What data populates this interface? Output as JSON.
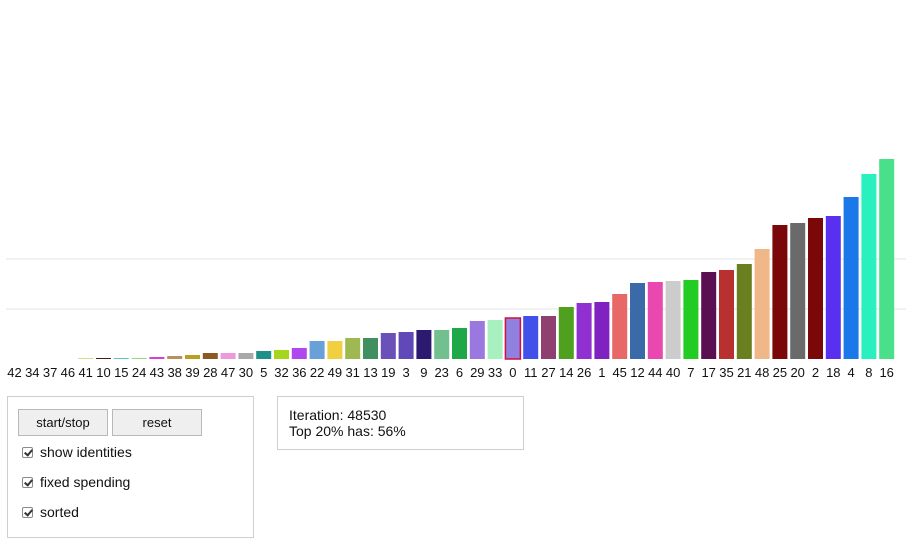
{
  "chart_data": {
    "type": "bar",
    "categories": [
      "42",
      "34",
      "37",
      "46",
      "41",
      "10",
      "15",
      "24",
      "43",
      "38",
      "39",
      "28",
      "47",
      "30",
      "5",
      "32",
      "36",
      "22",
      "49",
      "31",
      "13",
      "19",
      "3",
      "9",
      "23",
      "6",
      "29",
      "33",
      "0",
      "11",
      "27",
      "14",
      "26",
      "1",
      "45",
      "12",
      "44",
      "40",
      "7",
      "17",
      "35",
      "21",
      "48",
      "25",
      "20",
      "2",
      "18",
      "4",
      "8",
      "16"
    ],
    "values": [
      0,
      0,
      0,
      0,
      0.5,
      1,
      1,
      1,
      2,
      3,
      4,
      6,
      6,
      6,
      8,
      9,
      11,
      18,
      18,
      21,
      21,
      26,
      27,
      29,
      29,
      31,
      38,
      39,
      41,
      43,
      43,
      52,
      56,
      57,
      65,
      76,
      77,
      78,
      79,
      87,
      89,
      95,
      110,
      134,
      136,
      141,
      143,
      162,
      185,
      200
    ],
    "colors": [
      "#3a3a3a",
      "#3a3a3a",
      "#3a3a3a",
      "#3a3a3a",
      "#c9e08f",
      "#4a1a1a",
      "#5cc7c7",
      "#8fdc7a",
      "#d640d6",
      "#b89060",
      "#b8a020",
      "#8a5a20",
      "#ee99dd",
      "#a9a9a9",
      "#1f8f8a",
      "#a6d61c",
      "#b048f0",
      "#6aa0d8",
      "#f0d040",
      "#9eb852",
      "#3f8f60",
      "#6a50b8",
      "#6048b8",
      "#2c1a70",
      "#72c090",
      "#1fa848",
      "#9a78e0",
      "#a8f0c0",
      "#9080e0",
      "#4050e8",
      "#904070",
      "#50a020",
      "#9030d0",
      "#8022c0",
      "#e86868",
      "#3a6aa8",
      "#e848b0",
      "#cccccc",
      "#22cc22",
      "#5a1050",
      "#b83030",
      "#6a8020",
      "#f0b888",
      "#7a0808",
      "#6a6a6a",
      "#7a0808",
      "#5a30f0",
      "#1a78e8",
      "#2af0c0",
      "#4ae08a"
    ],
    "highlight_index": 28,
    "ylim": [
      0,
      220
    ],
    "grid": true,
    "gridlines": [
      50,
      100
    ]
  },
  "controls": {
    "start_stop_label": "start/stop",
    "reset_label": "reset",
    "show_identities_label": "show identities",
    "fixed_spending_label": "fixed spending",
    "sorted_label": "sorted",
    "show_identities_checked": true,
    "fixed_spending_checked": true,
    "sorted_checked": true
  },
  "stats": {
    "iteration_text": "Iteration: 48530",
    "top_text": "Top 20% has: 56%"
  }
}
